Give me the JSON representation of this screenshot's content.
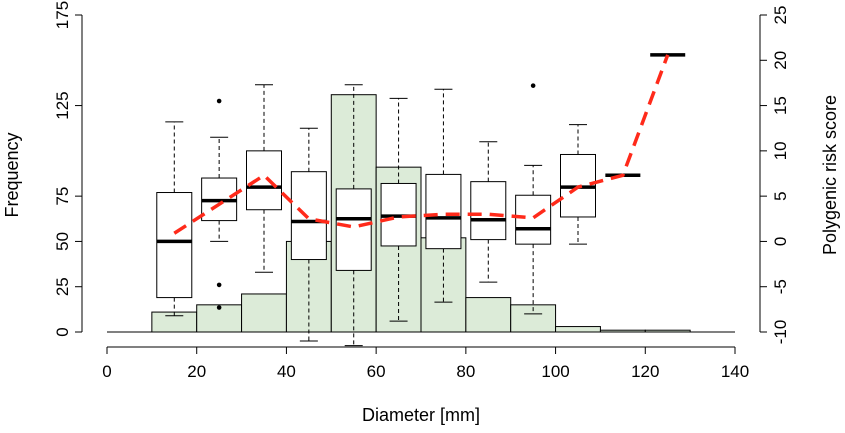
{
  "chart_data": {
    "type": "bar",
    "xlabel": "Diameter [mm]",
    "ylabel_left": "Frequency",
    "ylabel_right": "Polygenic risk score",
    "xlim": [
      0,
      140
    ],
    "ylim_left": [
      0,
      175
    ],
    "ylim_right": [
      -10,
      25
    ],
    "x_ticks": [
      0,
      20,
      40,
      60,
      80,
      100,
      120,
      140
    ],
    "y_left_ticks": [
      0,
      25,
      50,
      75,
      125,
      175
    ],
    "y_right_ticks": [
      -10,
      -5,
      0,
      5,
      10,
      15,
      20,
      25
    ],
    "histogram": {
      "bin_edges": [
        0,
        10,
        20,
        30,
        40,
        50,
        60,
        70,
        80,
        90,
        100,
        110,
        120,
        130,
        140
      ],
      "counts": [
        0,
        11,
        15,
        21,
        50,
        131,
        91,
        52,
        19,
        15,
        3,
        1,
        1,
        0
      ],
      "fill": "#dcebd8",
      "stroke": "#000000"
    },
    "boxplots": [
      {
        "x": 15,
        "q1": 0,
        "median": 0,
        "q3": 0,
        "wlo": 0,
        "whi": 0,
        "outliers": []
      },
      {
        "x": 15,
        "q1": -6.2,
        "median": 0,
        "q3": 5.4,
        "wlo": -8.2,
        "whi": 13.2,
        "outliers": []
      },
      {
        "x": 25,
        "q1": 2.3,
        "median": 4.5,
        "q3": 7.0,
        "wlo": 0,
        "whi": 11.5,
        "outliers": [
          15.5,
          -4.8,
          -7.3
        ]
      },
      {
        "x": 35,
        "q1": 3.5,
        "median": 6.0,
        "q3": 10.0,
        "wlo": -3.4,
        "whi": 17.3,
        "outliers": []
      },
      {
        "x": 45,
        "q1": -2.0,
        "median": 2.2,
        "q3": 7.7,
        "wlo": -11.0,
        "whi": 12.5,
        "outliers": []
      },
      {
        "x": 55,
        "q1": -3.2,
        "median": 2.5,
        "q3": 5.8,
        "wlo": -11.5,
        "whi": 17.3,
        "outliers": []
      },
      {
        "x": 65,
        "q1": -0.5,
        "median": 2.8,
        "q3": 6.4,
        "wlo": -8.8,
        "whi": 15.8,
        "outliers": []
      },
      {
        "x": 75,
        "q1": -0.8,
        "median": 2.6,
        "q3": 7.4,
        "wlo": -6.7,
        "whi": 16.8,
        "outliers": []
      },
      {
        "x": 85,
        "q1": 0.2,
        "median": 2.4,
        "q3": 6.6,
        "wlo": -4.5,
        "whi": 11.0,
        "outliers": []
      },
      {
        "x": 95,
        "q1": -0.3,
        "median": 1.4,
        "q3": 5.1,
        "wlo": -8.0,
        "whi": 8.4,
        "outliers": [
          17.2
        ]
      },
      {
        "x": 105,
        "q1": 2.7,
        "median": 6.0,
        "q3": 9.6,
        "wlo": -0.3,
        "whi": 12.9,
        "outliers": []
      },
      {
        "x": 115,
        "q1": 7.3,
        "median": 7.3,
        "q3": 7.3,
        "wlo": 7.3,
        "whi": 7.3,
        "outliers": []
      },
      {
        "x": 125,
        "q1": 20.6,
        "median": 20.6,
        "q3": 20.6,
        "wlo": 20.6,
        "whi": 20.6,
        "outliers": []
      }
    ],
    "mean_line": {
      "color": "#ff2a1a",
      "style": "dashed",
      "points": [
        [
          15,
          0.9
        ],
        [
          25,
          4.1
        ],
        [
          35,
          7.3
        ],
        [
          45,
          2.5
        ],
        [
          55,
          1.6
        ],
        [
          65,
          2.7
        ],
        [
          75,
          3.0
        ],
        [
          85,
          3.0
        ],
        [
          95,
          2.6
        ],
        [
          105,
          6.0
        ],
        [
          115,
          7.3
        ],
        [
          125,
          20.6
        ]
      ]
    }
  }
}
